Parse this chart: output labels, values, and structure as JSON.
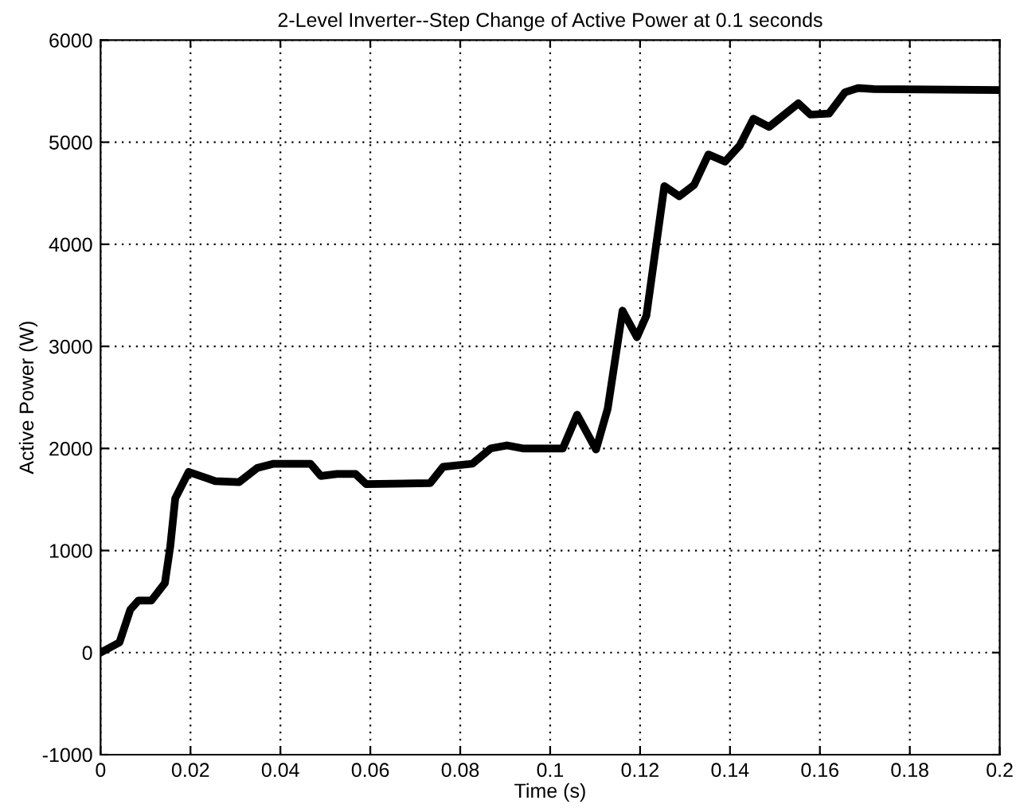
{
  "chart_data": {
    "type": "line",
    "title": "2-Level Inverter--Step Change of Active Power at 0.1 seconds",
    "xlabel": "Time (s)",
    "ylabel": "Active Power (W)",
    "series": [
      {
        "color": "#000000",
        "x": [
          0,
          0.0042,
          0.0066,
          0.0084,
          0.0113,
          0.0143,
          0.0155,
          0.0166,
          0.0196,
          0.0255,
          0.0308,
          0.0349,
          0.0385,
          0.0467,
          0.049,
          0.0526,
          0.0567,
          0.0591,
          0.0733,
          0.0762,
          0.0827,
          0.0868,
          0.0904,
          0.0939,
          0.1028,
          0.106,
          0.1102,
          0.1128,
          0.1161,
          0.1193,
          0.1214,
          0.1254,
          0.1287,
          0.132,
          0.1352,
          0.1389,
          0.1422,
          0.1452,
          0.1487,
          0.1552,
          0.1579,
          0.162,
          0.1656,
          0.1685,
          0.172,
          0.2
        ],
        "values": [
          0,
          100,
          420,
          510,
          510,
          680,
          1040,
          1510,
          1770,
          1680,
          1670,
          1810,
          1850,
          1850,
          1730,
          1750,
          1750,
          1650,
          1660,
          1820,
          1850,
          2000,
          2030,
          2000,
          2000,
          2330,
          1990,
          2390,
          3350,
          3090,
          3300,
          4570,
          4470,
          4580,
          4880,
          4810,
          4970,
          5230,
          5150,
          5380,
          5270,
          5280,
          5490,
          5530,
          5520,
          5510
        ]
      }
    ],
    "xlim": [
      0,
      0.2
    ],
    "xticks": [
      0,
      0.02,
      0.04,
      0.06,
      0.08,
      0.1,
      0.12,
      0.14,
      0.16,
      0.18,
      0.2
    ],
    "ylim": [
      -1000,
      6000
    ],
    "yticks": [
      -1000,
      0,
      1000,
      2000,
      3000,
      4000,
      5000,
      6000
    ],
    "grid": true,
    "line_style": "solid",
    "marker": "none",
    "legend": false
  }
}
